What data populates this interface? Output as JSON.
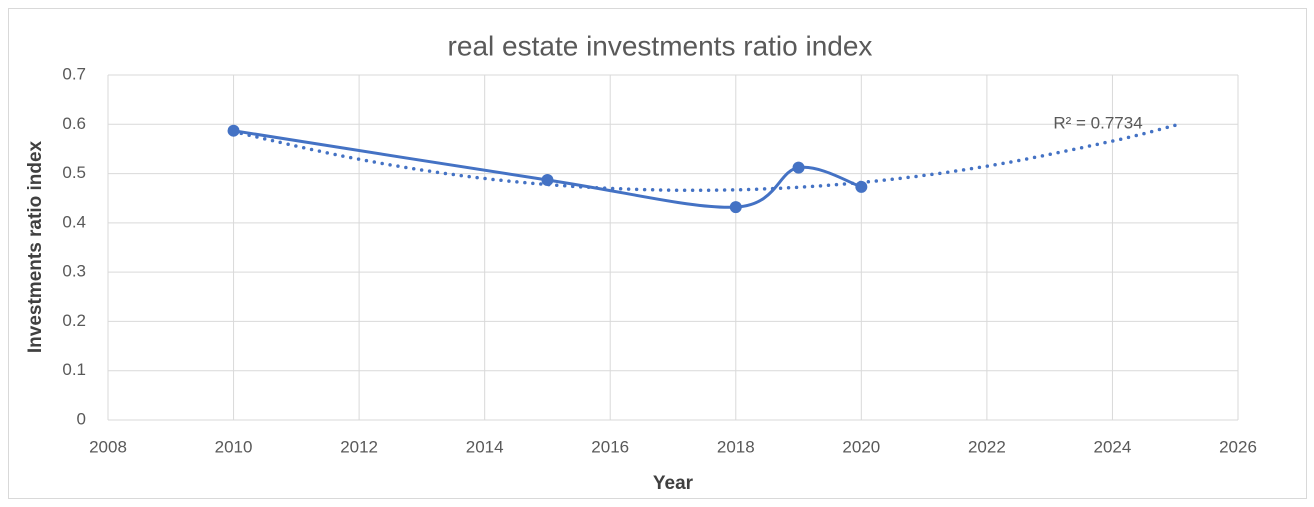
{
  "chart_data": {
    "type": "scatter",
    "title": "real estate investments ratio index",
    "x_label": "Year",
    "y_label": "Investments ratio index",
    "annotation": "R² = 0.7734",
    "series": [
      {
        "color": "#4472c4",
        "line": "smooth",
        "markers": true,
        "x": [
          2010,
          2015,
          2018,
          2019,
          2020
        ],
        "values": [
          0.587,
          0.487,
          0.432,
          0.512,
          0.473
        ]
      },
      {
        "color": "#4472c4",
        "line": "dotted",
        "markers": false,
        "x": [
          2010,
          2012,
          2014,
          2016,
          2018,
          2020,
          2022,
          2024,
          2025
        ],
        "values": [
          0.585,
          0.529,
          0.49,
          0.47,
          0.467,
          0.482,
          0.515,
          0.566,
          0.598
        ]
      }
    ],
    "xlim": [
      2008,
      2026
    ],
    "xticks": [
      2008,
      2010,
      2012,
      2014,
      2016,
      2018,
      2020,
      2022,
      2024,
      2026
    ],
    "ylim": [
      0,
      0.7
    ],
    "yticks": [
      0,
      0.1,
      0.2,
      0.3,
      0.4,
      0.5,
      0.6,
      0.7
    ],
    "grid": true
  }
}
